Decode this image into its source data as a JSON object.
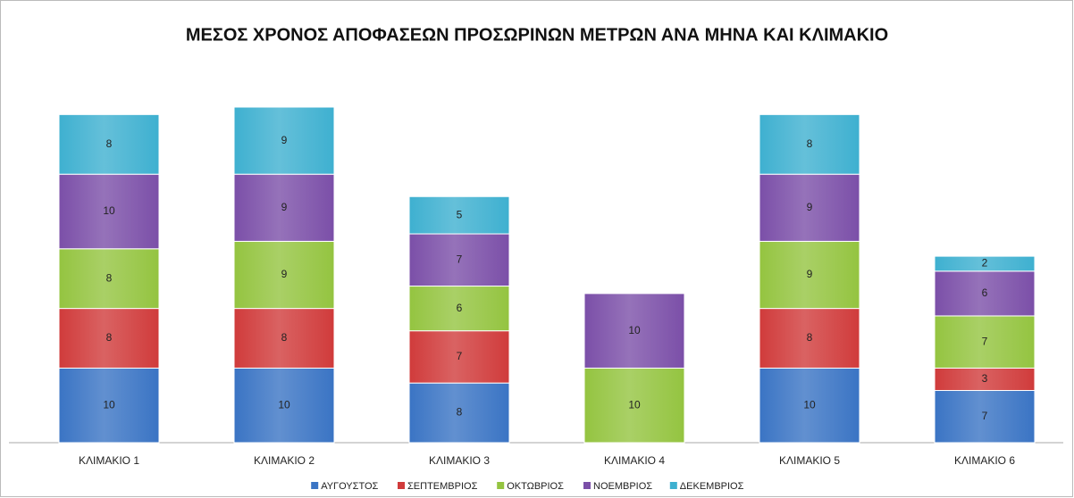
{
  "chart_data": {
    "type": "bar",
    "stacked": true,
    "title": "ΜΕΣΟΣ ΧΡΟΝΟΣ ΑΠΟΦΑΣΕΩΝ ΠΡΟΣΩΡΙΝΩΝ ΜΕΤΡΩΝ ΑΝΑ ΜΗΝΑ ΚΑΙ ΚΛΙΜΑΚΙΟ",
    "categories": [
      "ΚΛΙΜΑΚΙΟ 1",
      "ΚΛΙΜΑΚΙΟ 2",
      "ΚΛΙΜΑΚΙΟ 3",
      "ΚΛΙΜΑΚΙΟ 4",
      "ΚΛΙΜΑΚΙΟ 5",
      "ΚΛΙΜΑΚΙΟ 6"
    ],
    "series": [
      {
        "name": "ΑΥΓΟΥΣΤΟΣ",
        "color": "#3a74c4",
        "values": [
          10,
          10,
          8,
          null,
          10,
          7
        ]
      },
      {
        "name": "ΣΕΠΤΕΜΒΡΙΟΣ",
        "color": "#d03b3b",
        "values": [
          8,
          8,
          7,
          null,
          8,
          3
        ]
      },
      {
        "name": "ΟΚΤΩΒΡΙΟΣ",
        "color": "#94c440",
        "values": [
          8,
          9,
          6,
          10,
          9,
          7
        ]
      },
      {
        "name": "ΝΟΕΜΒΡΙΟΣ",
        "color": "#7b4fa8",
        "values": [
          10,
          9,
          7,
          10,
          9,
          6
        ]
      },
      {
        "name": "ΔΕΚΕΜΒΡΙΟΣ",
        "color": "#3eb0d0",
        "values": [
          8,
          9,
          5,
          null,
          8,
          2
        ]
      }
    ],
    "legend": "bottom",
    "grid": false
  }
}
